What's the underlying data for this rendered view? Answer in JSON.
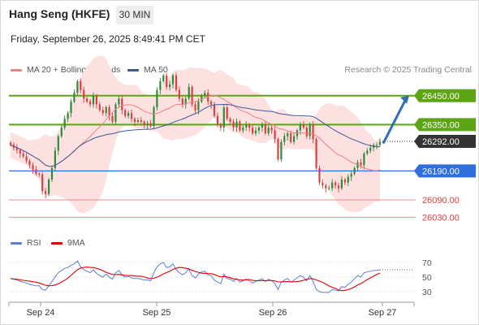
{
  "header": {
    "title": "Hang Seng (HKFE)",
    "interval": "30 MIN",
    "datetime": "Friday, September 26, 2025 8:49:41 PM CET",
    "credit": "Research © 2025 Trading Central"
  },
  "legend": {
    "bollinger": "MA 20 + Bollinger Bands",
    "ma50": "MA 50",
    "rsi": "RSI",
    "rsi_ma": "9MA"
  },
  "colors": {
    "up": "#2e8b3a",
    "down": "#d94040",
    "bollinger_fill": "#fde0e0",
    "ma20": "#f08080",
    "ma50": "#3a5a9a",
    "resistance": "#5ea515",
    "pivot": "#2f6fdb",
    "support": "#f08a8a",
    "last": "#333333",
    "rsi": "#5b7fd6",
    "rsi_ma": "#e00000"
  },
  "chart_data": [
    {
      "type": "candlestick",
      "x_labels": [
        "Sep 24",
        "Sep 25",
        "Sep 26",
        "Sep 27"
      ],
      "ylim": [
        26000,
        26500
      ],
      "levels": [
        {
          "value": 26450,
          "label": "26450.00",
          "kind": "resistance"
        },
        {
          "value": 26350,
          "label": "26350.00",
          "kind": "resistance"
        },
        {
          "value": 26292,
          "label": "26292.00",
          "kind": "last"
        },
        {
          "value": 26190,
          "label": "26190.00",
          "kind": "pivot"
        },
        {
          "value": 26090,
          "label": "26090.00",
          "kind": "support"
        },
        {
          "value": 26030,
          "label": "26030.00",
          "kind": "support"
        }
      ],
      "forecast_arrow": {
        "from": 26285,
        "to": 26450
      },
      "close": [
        26280,
        26270,
        26262,
        26250,
        26240,
        26225,
        26210,
        26195,
        26180,
        26178,
        26120,
        26110,
        26160,
        26200,
        26260,
        26310,
        26340,
        26370,
        26390,
        26430,
        26460,
        26500,
        26470,
        26440,
        26430,
        26420,
        26450,
        26420,
        26400,
        26390,
        26410,
        26380,
        26360,
        26420,
        26440,
        26400,
        26380,
        26390,
        26370,
        26360,
        26365,
        26360,
        26350,
        26355,
        26345,
        26410,
        26470,
        26500,
        26520,
        26480,
        26490,
        26520,
        26470,
        26440,
        26420,
        26440,
        26480,
        26420,
        26400,
        26430,
        26450,
        26460,
        26430,
        26420,
        26380,
        26350,
        26340,
        26410,
        26370,
        26360,
        26340,
        26360,
        26330,
        26340,
        26350,
        26340,
        26320,
        26330,
        26340,
        26350,
        26320,
        26340,
        26330,
        26300,
        26230,
        26290,
        26310,
        26320,
        26290,
        26310,
        26330,
        26350,
        26340,
        26310,
        26350,
        26300,
        26200,
        26150,
        26140,
        26130,
        26130,
        26150,
        26140,
        26130,
        26160,
        26150,
        26170,
        26180,
        26200,
        26220,
        26210,
        26250,
        26260,
        26270,
        26280,
        26280,
        26290
      ],
      "rsi": {
        "ylim": [
          20,
          80
        ],
        "ticks": [
          70,
          50,
          30
        ],
        "values": [
          48,
          47,
          46,
          44,
          43,
          42,
          40,
          39,
          38,
          38,
          33,
          32,
          38,
          44,
          50,
          56,
          59,
          62,
          63,
          66,
          68,
          72,
          64,
          60,
          58,
          56,
          60,
          55,
          52,
          50,
          54,
          50,
          47,
          56,
          59,
          53,
          50,
          51,
          49,
          48,
          48,
          47,
          46,
          46,
          45,
          56,
          64,
          68,
          70,
          63,
          64,
          68,
          60,
          56,
          53,
          56,
          61,
          52,
          49,
          54,
          57,
          58,
          53,
          52,
          46,
          43,
          41,
          54,
          48,
          47,
          44,
          48,
          43,
          45,
          47,
          45,
          42,
          44,
          46,
          48,
          44,
          47,
          45,
          41,
          33,
          43,
          46,
          48,
          43,
          46,
          49,
          52,
          50,
          45,
          52,
          44,
          33,
          30,
          29,
          29,
          29,
          33,
          32,
          31,
          37,
          36,
          40,
          43,
          48,
          52,
          50,
          56,
          57,
          58,
          59,
          59,
          60
        ]
      }
    }
  ]
}
